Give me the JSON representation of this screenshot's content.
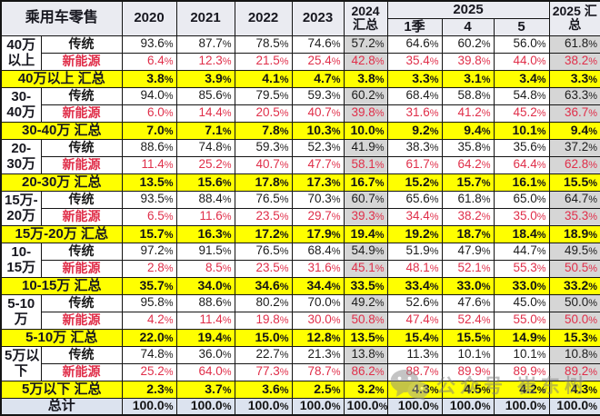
{
  "chart_data": {
    "type": "table",
    "title": "乘用车零售",
    "columns": [
      "2020",
      "2021",
      "2022",
      "2023",
      "2024 汇总",
      "2025 1季",
      "2025 4",
      "2025 5",
      "2025 汇总"
    ],
    "row_types": {
      "traditional": "传统",
      "nev": "新能源"
    },
    "groups": [
      {
        "label_lines": [
          "40万",
          "以上"
        ],
        "traditional": [
          "93.6%",
          "87.7%",
          "78.5%",
          "74.6%",
          "57.2%",
          "64.6%",
          "60.2%",
          "56.0%",
          "61.8%"
        ],
        "nev": [
          "6.4%",
          "12.3%",
          "21.5%",
          "25.4%",
          "42.8%",
          "35.4%",
          "39.8%",
          "44.0%",
          "38.2%"
        ],
        "total_label": "40万以上 汇总",
        "total": [
          "3.8%",
          "3.9%",
          "4.1%",
          "4.7%",
          "3.8%",
          "3.3%",
          "3.1%",
          "3.4%",
          "3.3%"
        ]
      },
      {
        "label_lines": [
          "30-",
          "40万"
        ],
        "traditional": [
          "94.0%",
          "85.6%",
          "79.5%",
          "59.3%",
          "60.2%",
          "68.4%",
          "58.8%",
          "54.8%",
          "63.3%"
        ],
        "nev": [
          "6.0%",
          "14.4%",
          "20.5%",
          "40.7%",
          "39.8%",
          "31.6%",
          "41.2%",
          "45.2%",
          "36.7%"
        ],
        "total_label": "30-40万 汇总",
        "total": [
          "7.0%",
          "7.1%",
          "7.8%",
          "10.3%",
          "10.0%",
          "9.2%",
          "9.4%",
          "10.1%",
          "9.4%"
        ]
      },
      {
        "label_lines": [
          "20-",
          "30万"
        ],
        "traditional": [
          "88.6%",
          "74.8%",
          "59.3%",
          "52.3%",
          "41.9%",
          "38.3%",
          "35.8%",
          "35.6%",
          "37.2%"
        ],
        "nev": [
          "11.4%",
          "25.2%",
          "40.7%",
          "47.7%",
          "58.1%",
          "61.7%",
          "64.2%",
          "64.4%",
          "62.8%"
        ],
        "total_label": "20-30万 汇总",
        "total": [
          "13.5%",
          "15.6%",
          "17.8%",
          "17.3%",
          "16.7%",
          "15.2%",
          "15.7%",
          "16.1%",
          "15.5%"
        ]
      },
      {
        "label_lines": [
          "15万-",
          "20万"
        ],
        "traditional": [
          "93.5%",
          "88.4%",
          "76.5%",
          "70.3%",
          "60.7%",
          "65.6%",
          "61.8%",
          "65.0%",
          "64.7%"
        ],
        "nev": [
          "6.5%",
          "11.6%",
          "23.5%",
          "29.7%",
          "39.3%",
          "34.4%",
          "38.2%",
          "35.0%",
          "35.3%"
        ],
        "total_label": "15万-20万 汇总",
        "total": [
          "15.7%",
          "16.3%",
          "17.2%",
          "17.9%",
          "19.4%",
          "19.2%",
          "18.7%",
          "18.4%",
          "18.9%"
        ]
      },
      {
        "label_lines": [
          "10-",
          "15万"
        ],
        "traditional": [
          "97.2%",
          "91.5%",
          "76.5%",
          "68.4%",
          "54.9%",
          "51.9%",
          "47.9%",
          "44.7%",
          "49.5%"
        ],
        "nev": [
          "2.8%",
          "8.5%",
          "23.5%",
          "31.6%",
          "45.1%",
          "48.1%",
          "52.1%",
          "55.3%",
          "50.5%"
        ],
        "total_label": "10-15万 汇总",
        "total": [
          "35.7%",
          "34.0%",
          "34.6%",
          "34.4%",
          "33.5%",
          "33.4%",
          "33.0%",
          "33.0%",
          "33.2%"
        ]
      },
      {
        "label_lines": [
          "5-10",
          "万"
        ],
        "traditional": [
          "95.8%",
          "88.6%",
          "80.2%",
          "70.0%",
          "49.2%",
          "52.6%",
          "47.6%",
          "45.0%",
          "50.0%"
        ],
        "nev": [
          "4.2%",
          "11.4%",
          "19.8%",
          "30.0%",
          "50.8%",
          "47.4%",
          "52.4%",
          "55.0%",
          "50.0%"
        ],
        "total_label": "5-10万 汇总",
        "total": [
          "22.0%",
          "19.4%",
          "15.0%",
          "12.8%",
          "13.5%",
          "15.4%",
          "15.5%",
          "14.9%",
          "15.3%"
        ]
      },
      {
        "label_lines": [
          "5万以",
          "下"
        ],
        "traditional": [
          "74.8%",
          "36.0%",
          "22.7%",
          "21.3%",
          "13.8%",
          "11.3%",
          "10.1%",
          "10.1%",
          "10.8%"
        ],
        "nev": [
          "25.2%",
          "64.0%",
          "77.3%",
          "78.7%",
          "86.2%",
          "88.7%",
          "89.9%",
          "89.9%",
          "89.2%"
        ],
        "total_label": "5万以下 汇总",
        "total": [
          "2.3%",
          "3.7%",
          "3.6%",
          "2.5%",
          "3.2%",
          "4.3%",
          "4.5%",
          "4.2%",
          "4.3%"
        ]
      }
    ],
    "grand_total_label": "总计",
    "grand_total": [
      "100.0%",
      "100.0%",
      "100.0%",
      "100.0%",
      "100.0%",
      "100.0%",
      "100.0%",
      "100.0%",
      "100.0%"
    ]
  },
  "header": {
    "title": "乘用车零售",
    "years": [
      "2020",
      "2021",
      "2022",
      "2023"
    ],
    "total_2024_line1": "2024",
    "total_2024_line2": "汇总",
    "group_2025": "2025",
    "subcols_2025": [
      "1季",
      "4",
      "5"
    ],
    "total_2025_line1": "2025 汇",
    "total_2025_line2": "总"
  },
  "watermark": {
    "icon": "wechat-icon",
    "text": "公众号 崔东树"
  },
  "colors": {
    "summary_row_bg": "#ffff00",
    "total_column_bg": "#d6d6d6",
    "grand_total_row_bg": "#dce3ef",
    "header_bg": "#eaebf1",
    "nev_text": "#e02f4a",
    "border": "#141414"
  }
}
